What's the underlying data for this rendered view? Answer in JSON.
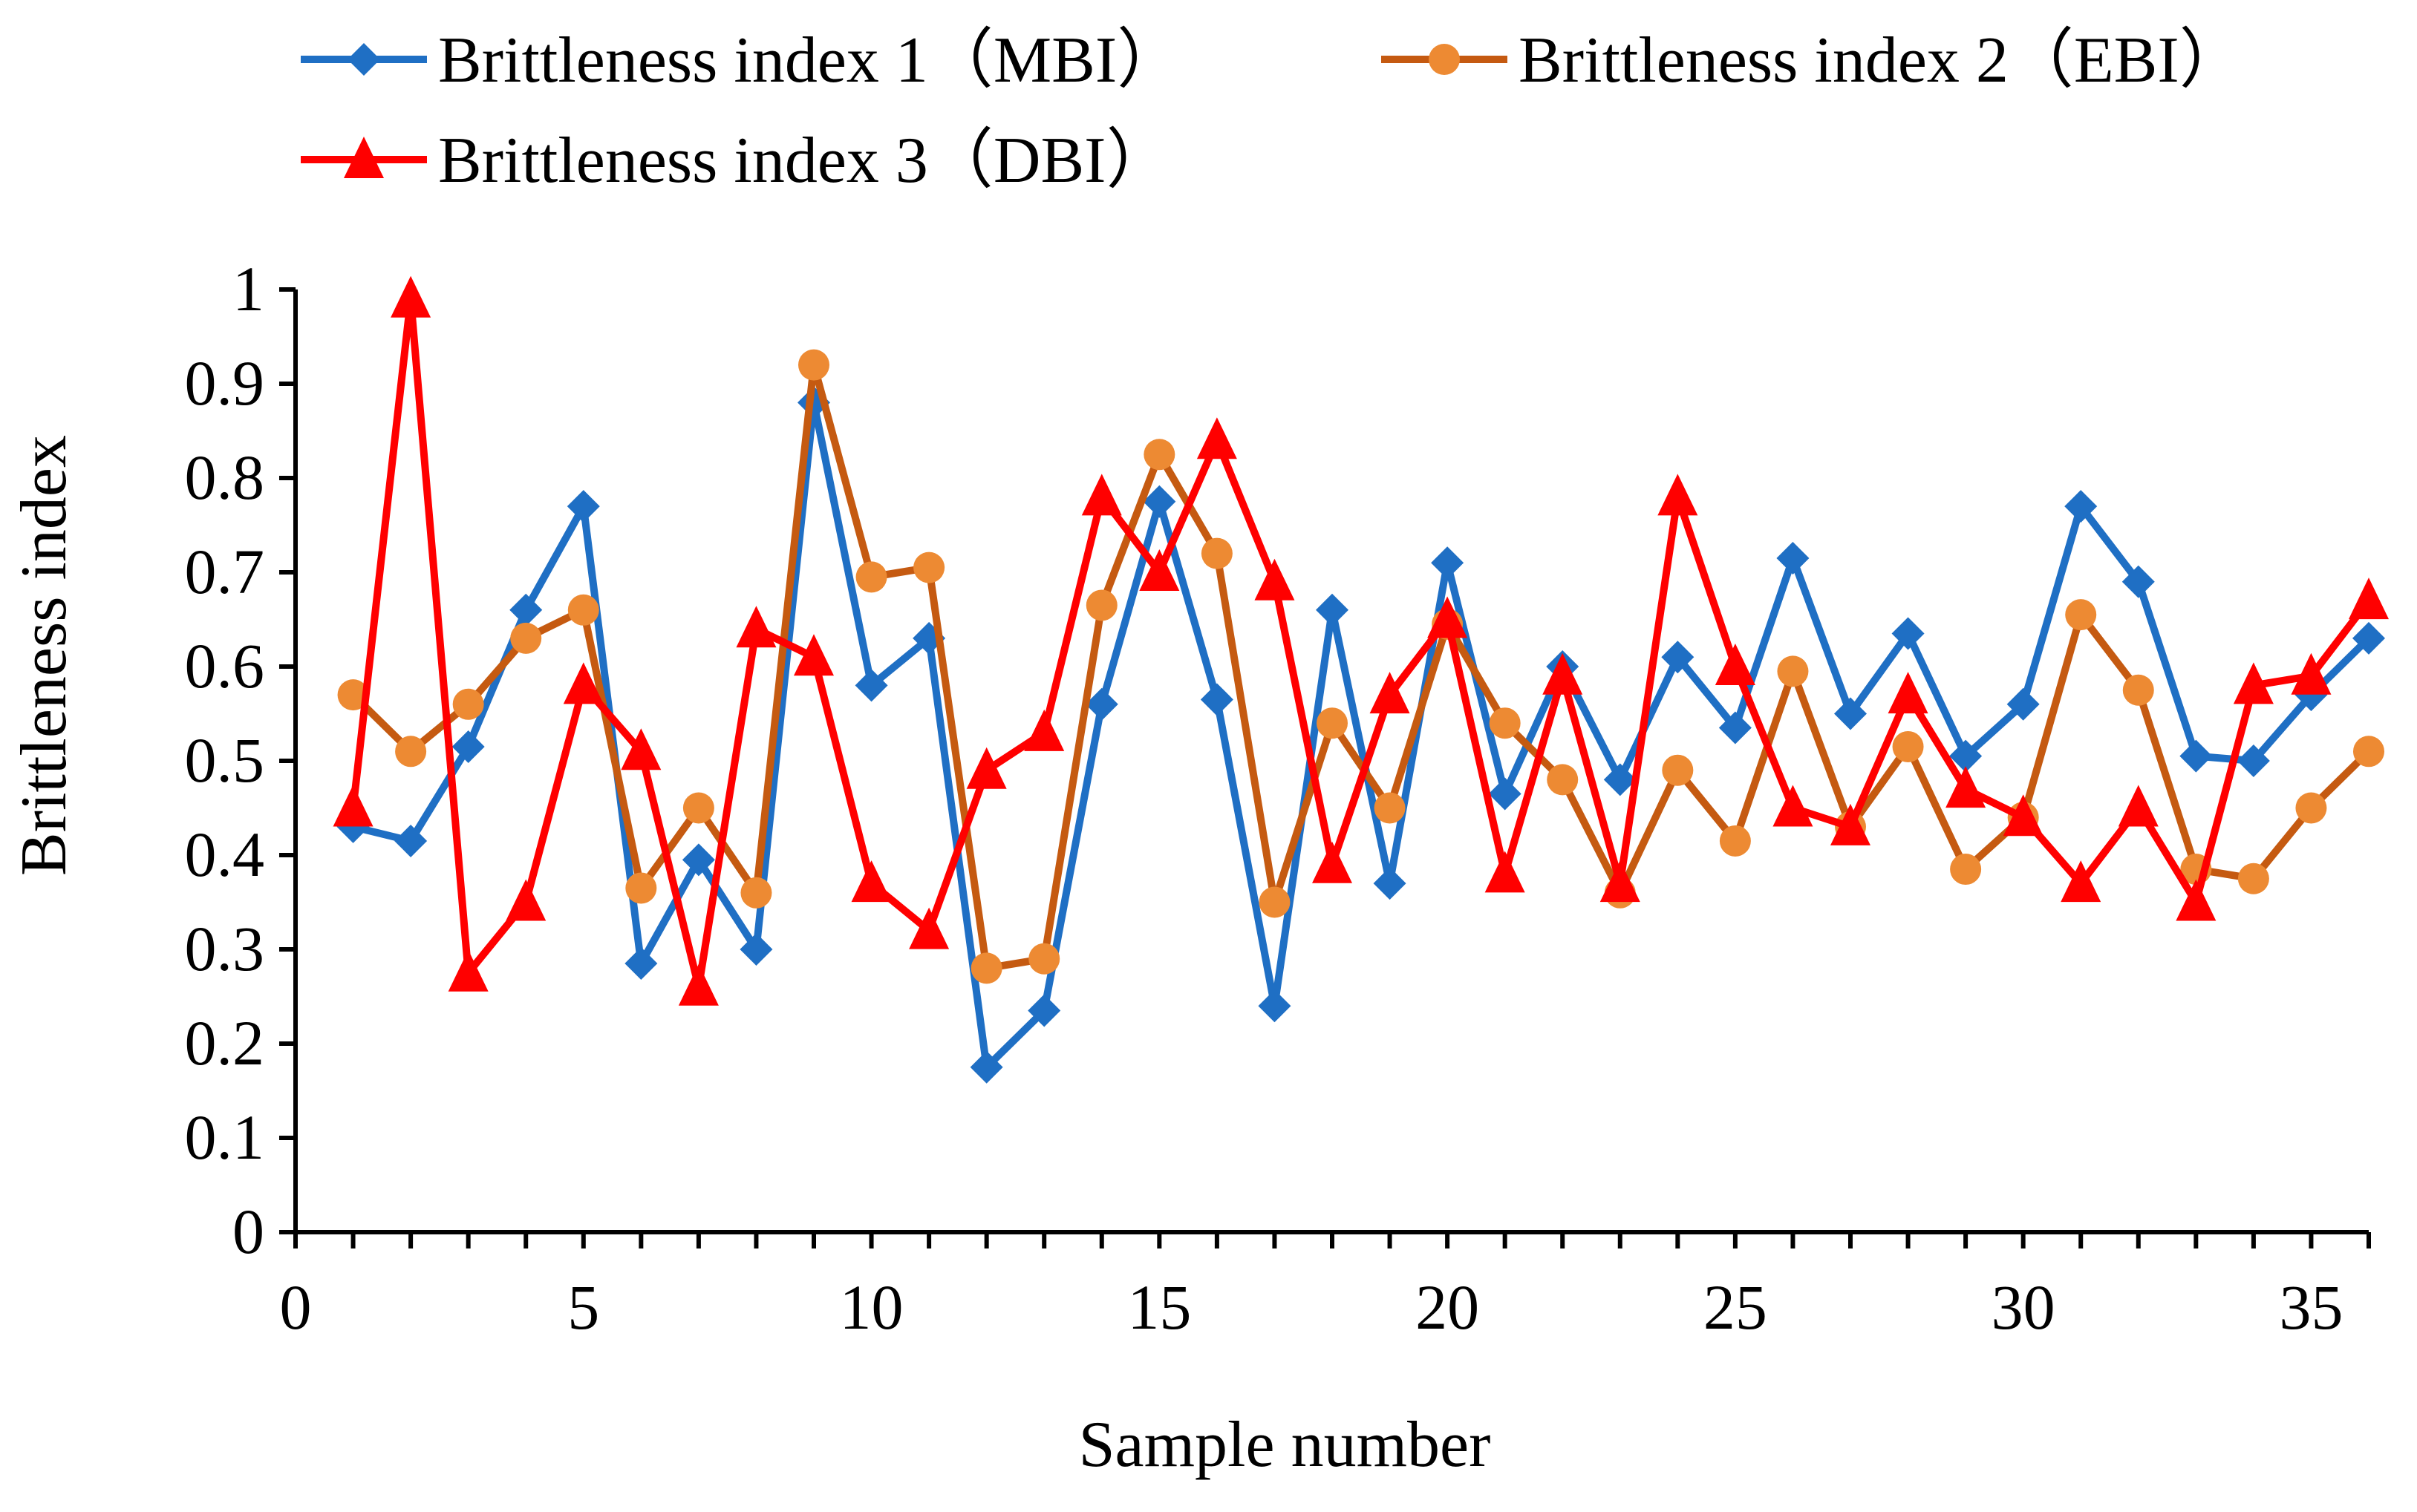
{
  "chart_data": {
    "type": "line",
    "title": "",
    "xlabel": "Sample number",
    "ylabel": "Brittleness index",
    "xlim": [
      0,
      36
    ],
    "ylim": [
      0,
      1
    ],
    "x_ticks": [
      0,
      5,
      10,
      15,
      20,
      25,
      30,
      35
    ],
    "y_ticks": [
      0,
      0.1,
      0.2,
      0.3,
      0.4,
      0.5,
      0.6,
      0.7,
      0.8,
      0.9,
      1
    ],
    "grid": false,
    "legend_position": "top",
    "x": [
      1,
      2,
      3,
      4,
      5,
      6,
      7,
      8,
      9,
      10,
      11,
      12,
      13,
      14,
      15,
      16,
      17,
      18,
      19,
      20,
      21,
      22,
      23,
      24,
      25,
      26,
      27,
      28,
      29,
      30,
      31,
      32,
      33,
      34,
      35,
      36
    ],
    "series": [
      {
        "name": "Brittleness index 1（MBI）",
        "color": "#1f6fc4",
        "marker": "diamond",
        "values": [
          0.43,
          0.415,
          0.515,
          0.66,
          0.77,
          0.285,
          0.395,
          0.3,
          0.88,
          0.58,
          0.63,
          0.175,
          0.235,
          0.56,
          0.775,
          0.565,
          0.24,
          0.66,
          0.37,
          0.71,
          0.465,
          0.6,
          0.48,
          0.61,
          0.535,
          0.715,
          0.55,
          0.635,
          0.505,
          0.56,
          0.77,
          0.69,
          0.505,
          0.5,
          0.57,
          0.63
        ]
      },
      {
        "name": "Brittleness index 2（EBI）",
        "color": "#ed8a33",
        "line_color": "#c55a11",
        "marker": "circle",
        "values": [
          0.57,
          0.51,
          0.56,
          0.63,
          0.66,
          0.365,
          0.45,
          0.36,
          0.92,
          0.695,
          0.705,
          0.28,
          0.29,
          0.665,
          0.825,
          0.72,
          0.35,
          0.54,
          0.45,
          0.645,
          0.54,
          0.48,
          0.36,
          0.49,
          0.415,
          0.595,
          0.43,
          0.515,
          0.385,
          0.44,
          0.655,
          0.575,
          0.385,
          0.375,
          0.45,
          0.51
        ]
      },
      {
        "name": "Brittleness index 3（DBI）",
        "color": "#ff0000",
        "marker": "triangle",
        "values": [
          0.45,
          0.99,
          0.275,
          0.35,
          0.58,
          0.51,
          0.26,
          0.64,
          0.61,
          0.37,
          0.32,
          0.49,
          0.53,
          0.78,
          0.7,
          0.84,
          0.69,
          0.39,
          0.57,
          0.65,
          0.38,
          0.59,
          0.37,
          0.78,
          0.6,
          0.45,
          0.43,
          0.57,
          0.47,
          0.44,
          0.37,
          0.45,
          0.35,
          0.58,
          0.59,
          0.67
        ]
      }
    ]
  }
}
